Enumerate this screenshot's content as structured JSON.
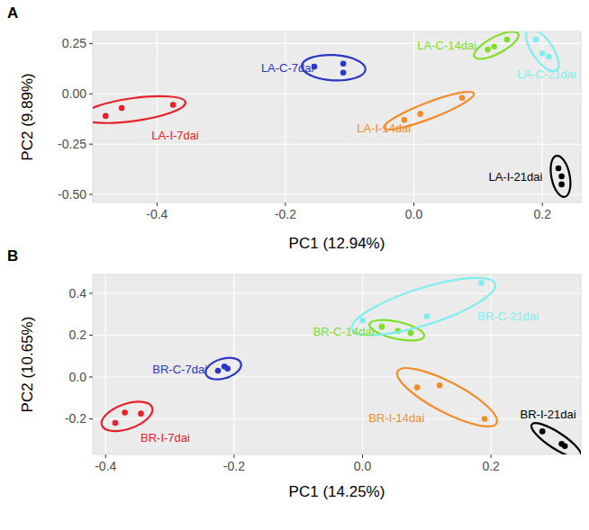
{
  "chart_data": [
    {
      "type": "scatter",
      "title": "A",
      "x_label": "PC1 (12.94%)",
      "y_label": "PC2 (9.89%)",
      "xlim": [
        -0.5,
        0.26
      ],
      "ylim": [
        -0.54,
        0.31
      ],
      "xticks": [
        -0.4,
        -0.2,
        {
          "value": 0,
          "label": "0.0"
        },
        0.2
      ],
      "yticks": [
        {
          "value": -0.5,
          "label": "-0.50"
        },
        -0.25,
        {
          "value": 0,
          "label": "0.00"
        },
        0.25
      ],
      "grid": true,
      "marker": "circle",
      "series": [
        {
          "name": "LA-I-7dai",
          "color": "#e8202a",
          "x": [
            -0.48,
            -0.455,
            -0.375
          ],
          "y": [
            -0.11,
            -0.07,
            -0.055
          ]
        },
        {
          "name": "LA-C-7dai",
          "color": "#2b35c6",
          "x": [
            -0.155,
            -0.11,
            -0.11
          ],
          "y": [
            0.135,
            0.15,
            0.105
          ]
        },
        {
          "name": "LA-I-14dai",
          "color": "#f28c28",
          "x": [
            -0.015,
            0.01,
            0.075
          ],
          "y": [
            -0.13,
            -0.1,
            -0.02
          ]
        },
        {
          "name": "LA-C-14dai",
          "color": "#7ee024",
          "x": [
            0.115,
            0.125,
            0.145
          ],
          "y": [
            0.22,
            0.235,
            0.27
          ]
        },
        {
          "name": "LA-C-21dai",
          "color": "#7feeee",
          "x": [
            0.19,
            0.2,
            0.21
          ],
          "y": [
            0.27,
            0.2,
            0.185
          ]
        },
        {
          "name": "LA-I-21dai",
          "color": "#000000",
          "x": [
            0.225,
            0.23,
            0.23
          ],
          "y": [
            -0.37,
            -0.41,
            -0.45
          ]
        }
      ]
    },
    {
      "type": "scatter",
      "title": "B",
      "x_label": "PC1 (14.25%)",
      "y_label": "PC2 (10.65%)",
      "xlim": [
        -0.42,
        0.34
      ],
      "ylim": [
        -0.37,
        0.49
      ],
      "xticks": [
        -0.4,
        -0.2,
        {
          "value": 0,
          "label": "0.0"
        },
        0.2
      ],
      "yticks": [
        -0.2,
        {
          "value": 0,
          "label": "0.0"
        },
        0.2,
        0.4
      ],
      "grid": true,
      "marker": "circle",
      "series": [
        {
          "name": "BR-I-7dai",
          "color": "#e8202a",
          "x": [
            -0.385,
            -0.37,
            -0.345
          ],
          "y": [
            -0.22,
            -0.17,
            -0.175
          ]
        },
        {
          "name": "BR-C-7dai",
          "color": "#2b35c6",
          "x": [
            -0.225,
            -0.215,
            -0.21
          ],
          "y": [
            0.03,
            0.05,
            0.04
          ]
        },
        {
          "name": "BR-I-14dai",
          "color": "#f28c28",
          "x": [
            0.085,
            0.12,
            0.19
          ],
          "y": [
            -0.05,
            -0.04,
            -0.2
          ]
        },
        {
          "name": "BR-C-14dai",
          "color": "#7ee024",
          "x": [
            0.03,
            0.055,
            0.075
          ],
          "y": [
            0.24,
            0.22,
            0.21
          ]
        },
        {
          "name": "BR-C-21dai",
          "color": "#7feeee",
          "x": [
            0,
            0.1,
            0.185
          ],
          "y": [
            0.27,
            0.29,
            0.45
          ]
        },
        {
          "name": "BR-I-21dai",
          "color": "#000000",
          "x": [
            0.28,
            0.31,
            0.315
          ],
          "y": [
            -0.26,
            -0.32,
            -0.33
          ]
        }
      ]
    }
  ]
}
